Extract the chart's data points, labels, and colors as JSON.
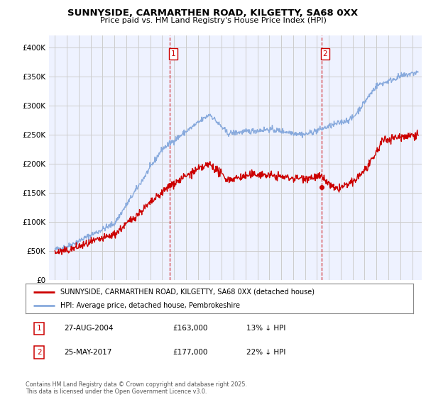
{
  "title_line1": "SUNNYSIDE, CARMARTHEN ROAD, KILGETTY, SA68 0XX",
  "title_line2": "Price paid vs. HM Land Registry's House Price Index (HPI)",
  "legend_line1": "SUNNYSIDE, CARMARTHEN ROAD, KILGETTY, SA68 0XX (detached house)",
  "legend_line2": "HPI: Average price, detached house, Pembrokeshire",
  "footnote": "Contains HM Land Registry data © Crown copyright and database right 2025.\nThis data is licensed under the Open Government Licence v3.0.",
  "table_rows": [
    {
      "num": "1",
      "date": "27-AUG-2004",
      "price": "£163,000",
      "hpi": "13% ↓ HPI"
    },
    {
      "num": "2",
      "date": "25-MAY-2017",
      "price": "£177,000",
      "hpi": "22% ↓ HPI"
    }
  ],
  "vline1_year": 2004.65,
  "vline2_year": 2017.39,
  "ylim": [
    0,
    420000
  ],
  "yticks": [
    0,
    50000,
    100000,
    150000,
    200000,
    250000,
    300000,
    350000,
    400000
  ],
  "ytick_labels": [
    "£0",
    "£50K",
    "£100K",
    "£150K",
    "£200K",
    "£250K",
    "£300K",
    "£350K",
    "£400K"
  ],
  "bg_color": "#eef2ff",
  "grid_color": "#cccccc",
  "red_color": "#cc0000",
  "blue_color": "#88aadd",
  "xlim_left": 1994.5,
  "xlim_right": 2025.8
}
